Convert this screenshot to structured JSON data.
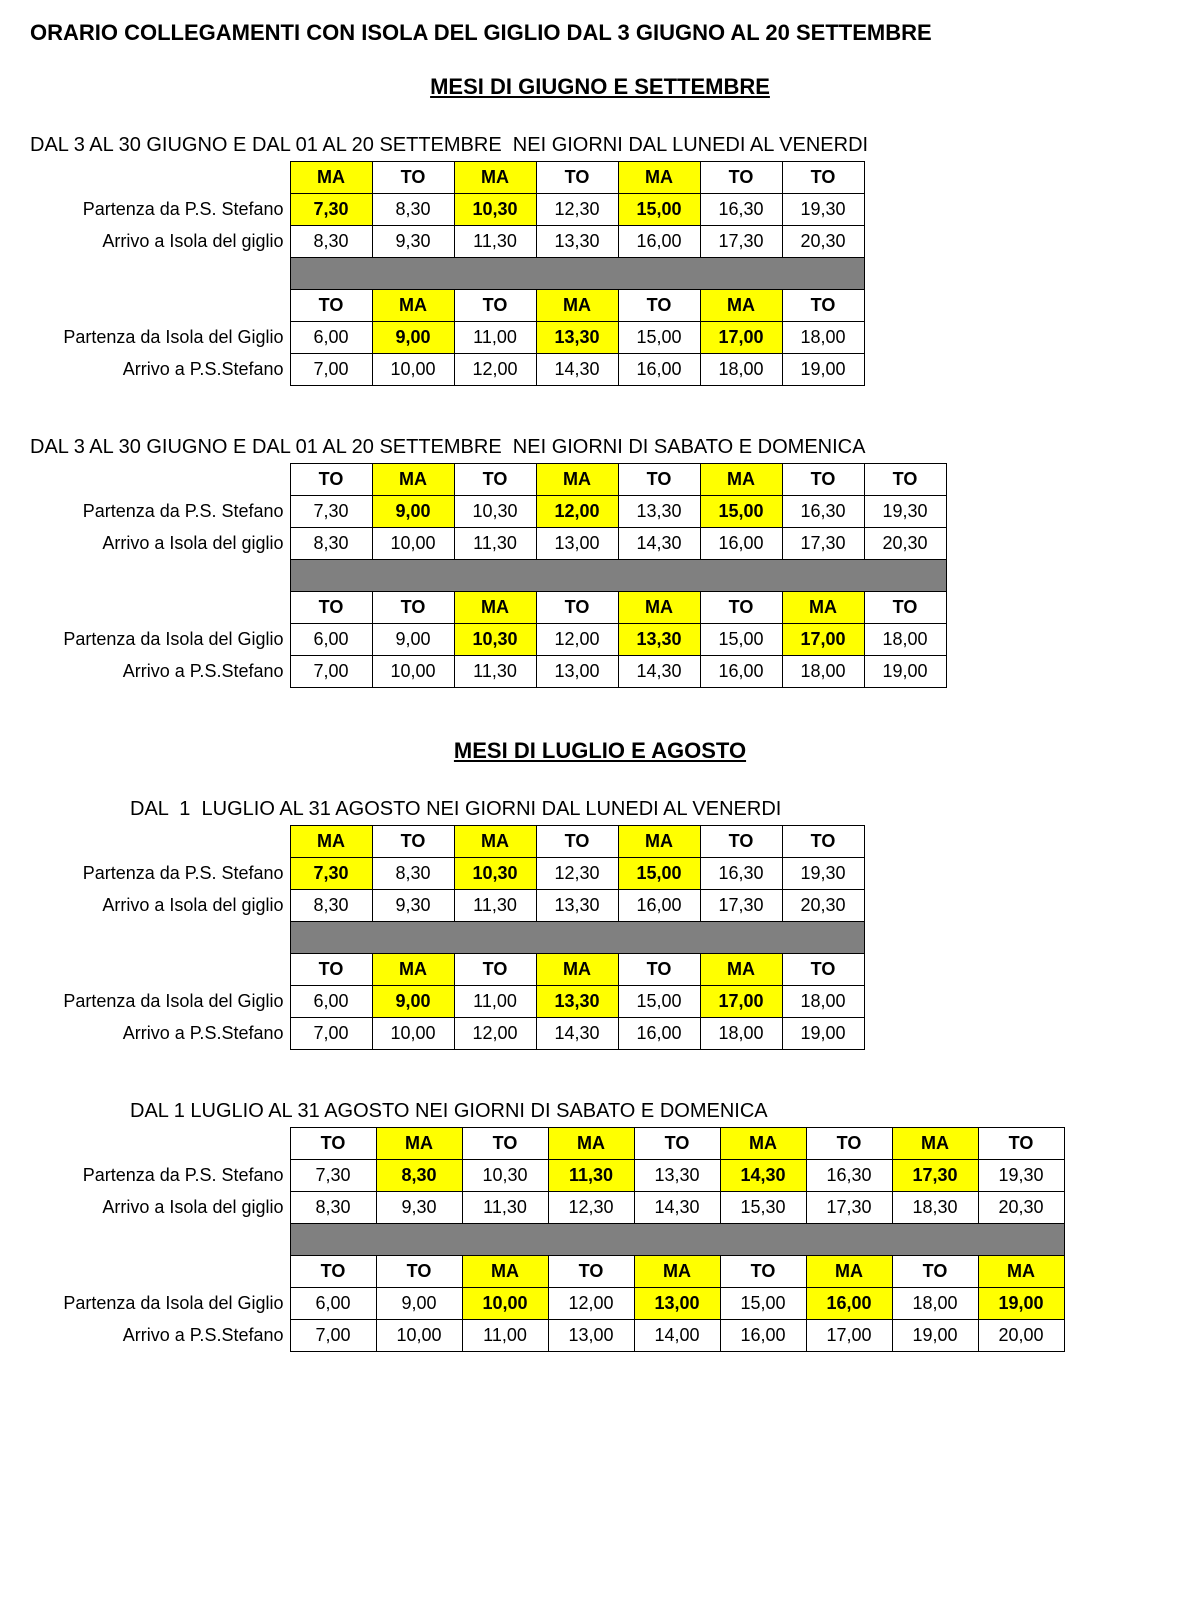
{
  "colors": {
    "highlight": "#ffff00",
    "spacer": "#808080",
    "border": "#000000",
    "background": "#ffffff"
  },
  "main_title": "ORARIO COLLEGAMENTI CON ISOLA DEL GIGLIO DAL 3 GIUGNO AL 20 SETTEMBRE",
  "section1_heading": "MESI DI GIUGNO E SETTEMBRE",
  "section2_heading": "MESI DI LUGLIO E AGOSTO",
  "row_labels": {
    "dep_ps": "Partenza da P.S. Stefano",
    "arr_isola": "Arrivo a Isola del giglio",
    "dep_isola": "Partenza da Isola del Giglio",
    "arr_ps": "Arrivo a P.S.Stefano"
  },
  "blocks": [
    {
      "title": "DAL 3 AL 30 GIUGNO E DAL 01 AL 20 SETTEMBRE  NEI GIORNI DAL LUNEDI AL VENERDI",
      "indent": false,
      "cols": 7,
      "out": {
        "hdr": [
          {
            "v": "MA",
            "h": 1
          },
          {
            "v": "TO",
            "h": 0
          },
          {
            "v": "MA",
            "h": 1
          },
          {
            "v": "TO",
            "h": 0
          },
          {
            "v": "MA",
            "h": 1
          },
          {
            "v": "TO",
            "h": 0
          },
          {
            "v": "TO",
            "h": 0
          }
        ],
        "dep": [
          {
            "v": "7,30",
            "h": 1
          },
          {
            "v": "8,30",
            "h": 0
          },
          {
            "v": "10,30",
            "h": 1
          },
          {
            "v": "12,30",
            "h": 0
          },
          {
            "v": "15,00",
            "h": 1
          },
          {
            "v": "16,30",
            "h": 0
          },
          {
            "v": "19,30",
            "h": 0
          }
        ],
        "arr": [
          {
            "v": "8,30",
            "h": 0
          },
          {
            "v": "9,30",
            "h": 0
          },
          {
            "v": "11,30",
            "h": 0
          },
          {
            "v": "13,30",
            "h": 0
          },
          {
            "v": "16,00",
            "h": 0
          },
          {
            "v": "17,30",
            "h": 0
          },
          {
            "v": "20,30",
            "h": 0
          }
        ]
      },
      "ret": {
        "hdr": [
          {
            "v": "TO",
            "h": 0
          },
          {
            "v": "MA",
            "h": 1
          },
          {
            "v": "TO",
            "h": 0
          },
          {
            "v": "MA",
            "h": 1
          },
          {
            "v": "TO",
            "h": 0
          },
          {
            "v": "MA",
            "h": 1
          },
          {
            "v": "TO",
            "h": 0
          }
        ],
        "dep": [
          {
            "v": "6,00",
            "h": 0
          },
          {
            "v": "9,00",
            "h": 1
          },
          {
            "v": "11,00",
            "h": 0
          },
          {
            "v": "13,30",
            "h": 1
          },
          {
            "v": "15,00",
            "h": 0
          },
          {
            "v": "17,00",
            "h": 1
          },
          {
            "v": "18,00",
            "h": 0
          }
        ],
        "arr": [
          {
            "v": "7,00",
            "h": 0
          },
          {
            "v": "10,00",
            "h": 0
          },
          {
            "v": "12,00",
            "h": 0
          },
          {
            "v": "14,30",
            "h": 0
          },
          {
            "v": "16,00",
            "h": 0
          },
          {
            "v": "18,00",
            "h": 0
          },
          {
            "v": "19,00",
            "h": 0
          }
        ]
      }
    },
    {
      "title": "DAL 3 AL 30 GIUGNO E DAL 01 AL 20 SETTEMBRE  NEI GIORNI DI SABATO E DOMENICA",
      "indent": false,
      "cols": 8,
      "out": {
        "hdr": [
          {
            "v": "TO",
            "h": 0
          },
          {
            "v": "MA",
            "h": 1
          },
          {
            "v": "TO",
            "h": 0
          },
          {
            "v": "MA",
            "h": 1
          },
          {
            "v": "TO",
            "h": 0
          },
          {
            "v": "MA",
            "h": 1
          },
          {
            "v": "TO",
            "h": 0
          },
          {
            "v": "TO",
            "h": 0
          }
        ],
        "dep": [
          {
            "v": "7,30",
            "h": 0
          },
          {
            "v": "9,00",
            "h": 1
          },
          {
            "v": "10,30",
            "h": 0
          },
          {
            "v": "12,00",
            "h": 1
          },
          {
            "v": "13,30",
            "h": 0
          },
          {
            "v": "15,00",
            "h": 1
          },
          {
            "v": "16,30",
            "h": 0
          },
          {
            "v": "19,30",
            "h": 0
          }
        ],
        "arr": [
          {
            "v": "8,30",
            "h": 0
          },
          {
            "v": "10,00",
            "h": 0
          },
          {
            "v": "11,30",
            "h": 0
          },
          {
            "v": "13,00",
            "h": 0
          },
          {
            "v": "14,30",
            "h": 0
          },
          {
            "v": "16,00",
            "h": 0
          },
          {
            "v": "17,30",
            "h": 0
          },
          {
            "v": "20,30",
            "h": 0
          }
        ]
      },
      "ret": {
        "hdr": [
          {
            "v": "TO",
            "h": 0
          },
          {
            "v": "TO",
            "h": 0
          },
          {
            "v": "MA",
            "h": 1
          },
          {
            "v": "TO",
            "h": 0
          },
          {
            "v": "MA",
            "h": 1
          },
          {
            "v": "TO",
            "h": 0
          },
          {
            "v": "MA",
            "h": 1
          },
          {
            "v": "TO",
            "h": 0
          }
        ],
        "dep": [
          {
            "v": "6,00",
            "h": 0
          },
          {
            "v": "9,00",
            "h": 0
          },
          {
            "v": "10,30",
            "h": 1
          },
          {
            "v": "12,00",
            "h": 0
          },
          {
            "v": "13,30",
            "h": 1
          },
          {
            "v": "15,00",
            "h": 0
          },
          {
            "v": "17,00",
            "h": 1
          },
          {
            "v": "18,00",
            "h": 0
          }
        ],
        "arr": [
          {
            "v": "7,00",
            "h": 0
          },
          {
            "v": "10,00",
            "h": 0
          },
          {
            "v": "11,30",
            "h": 0
          },
          {
            "v": "13,00",
            "h": 0
          },
          {
            "v": "14,30",
            "h": 0
          },
          {
            "v": "16,00",
            "h": 0
          },
          {
            "v": "18,00",
            "h": 0
          },
          {
            "v": "19,00",
            "h": 0
          }
        ]
      }
    },
    {
      "title": "DAL  1  LUGLIO AL 31 AGOSTO NEI GIORNI DAL LUNEDI AL VENERDI",
      "indent": true,
      "cols": 7,
      "out": {
        "hdr": [
          {
            "v": "MA",
            "h": 1
          },
          {
            "v": "TO",
            "h": 0
          },
          {
            "v": "MA",
            "h": 1
          },
          {
            "v": "TO",
            "h": 0
          },
          {
            "v": "MA",
            "h": 1
          },
          {
            "v": "TO",
            "h": 0
          },
          {
            "v": "TO",
            "h": 0
          }
        ],
        "dep": [
          {
            "v": "7,30",
            "h": 1
          },
          {
            "v": "8,30",
            "h": 0
          },
          {
            "v": "10,30",
            "h": 1
          },
          {
            "v": "12,30",
            "h": 0
          },
          {
            "v": "15,00",
            "h": 1
          },
          {
            "v": "16,30",
            "h": 0
          },
          {
            "v": "19,30",
            "h": 0
          }
        ],
        "arr": [
          {
            "v": "8,30",
            "h": 0
          },
          {
            "v": "9,30",
            "h": 0
          },
          {
            "v": "11,30",
            "h": 0
          },
          {
            "v": "13,30",
            "h": 0
          },
          {
            "v": "16,00",
            "h": 0
          },
          {
            "v": "17,30",
            "h": 0
          },
          {
            "v": "20,30",
            "h": 0
          }
        ]
      },
      "ret": {
        "hdr": [
          {
            "v": "TO",
            "h": 0
          },
          {
            "v": "MA",
            "h": 1
          },
          {
            "v": "TO",
            "h": 0
          },
          {
            "v": "MA",
            "h": 1
          },
          {
            "v": "TO",
            "h": 0
          },
          {
            "v": "MA",
            "h": 1
          },
          {
            "v": "TO",
            "h": 0
          }
        ],
        "dep": [
          {
            "v": "6,00",
            "h": 0
          },
          {
            "v": "9,00",
            "h": 1
          },
          {
            "v": "11,00",
            "h": 0
          },
          {
            "v": "13,30",
            "h": 1
          },
          {
            "v": "15,00",
            "h": 0
          },
          {
            "v": "17,00",
            "h": 1
          },
          {
            "v": "18,00",
            "h": 0
          }
        ],
        "arr": [
          {
            "v": "7,00",
            "h": 0
          },
          {
            "v": "10,00",
            "h": 0
          },
          {
            "v": "12,00",
            "h": 0
          },
          {
            "v": "14,30",
            "h": 0
          },
          {
            "v": "16,00",
            "h": 0
          },
          {
            "v": "18,00",
            "h": 0
          },
          {
            "v": "19,00",
            "h": 0
          }
        ]
      }
    },
    {
      "title": "DAL 1 LUGLIO AL 31 AGOSTO NEI GIORNI DI SABATO E DOMENICA",
      "indent": true,
      "cols": 9,
      "out": {
        "hdr": [
          {
            "v": "TO",
            "h": 0
          },
          {
            "v": "MA",
            "h": 1
          },
          {
            "v": "TO",
            "h": 0
          },
          {
            "v": "MA",
            "h": 1
          },
          {
            "v": "TO",
            "h": 0
          },
          {
            "v": "MA",
            "h": 1
          },
          {
            "v": "TO",
            "h": 0
          },
          {
            "v": "MA",
            "h": 1
          },
          {
            "v": "TO",
            "h": 0
          }
        ],
        "dep": [
          {
            "v": "7,30",
            "h": 0
          },
          {
            "v": "8,30",
            "h": 1
          },
          {
            "v": "10,30",
            "h": 0
          },
          {
            "v": "11,30",
            "h": 1
          },
          {
            "v": "13,30",
            "h": 0
          },
          {
            "v": "14,30",
            "h": 1
          },
          {
            "v": "16,30",
            "h": 0
          },
          {
            "v": "17,30",
            "h": 1
          },
          {
            "v": "19,30",
            "h": 0
          }
        ],
        "arr": [
          {
            "v": "8,30",
            "h": 0
          },
          {
            "v": "9,30",
            "h": 0
          },
          {
            "v": "11,30",
            "h": 0
          },
          {
            "v": "12,30",
            "h": 0
          },
          {
            "v": "14,30",
            "h": 0
          },
          {
            "v": "15,30",
            "h": 0
          },
          {
            "v": "17,30",
            "h": 0
          },
          {
            "v": "18,30",
            "h": 0
          },
          {
            "v": "20,30",
            "h": 0
          }
        ]
      },
      "ret": {
        "hdr": [
          {
            "v": "TO",
            "h": 0
          },
          {
            "v": "TO",
            "h": 0
          },
          {
            "v": "MA",
            "h": 1
          },
          {
            "v": "TO",
            "h": 0
          },
          {
            "v": "MA",
            "h": 1
          },
          {
            "v": "TO",
            "h": 0
          },
          {
            "v": "MA",
            "h": 1
          },
          {
            "v": "TO",
            "h": 0
          },
          {
            "v": "MA",
            "h": 1
          }
        ],
        "dep": [
          {
            "v": "6,00",
            "h": 0
          },
          {
            "v": "9,00",
            "h": 0
          },
          {
            "v": "10,00",
            "h": 1
          },
          {
            "v": "12,00",
            "h": 0
          },
          {
            "v": "13,00",
            "h": 1
          },
          {
            "v": "15,00",
            "h": 0
          },
          {
            "v": "16,00",
            "h": 1
          },
          {
            "v": "18,00",
            "h": 0
          },
          {
            "v": "19,00",
            "h": 1
          }
        ],
        "arr": [
          {
            "v": "7,00",
            "h": 0
          },
          {
            "v": "10,00",
            "h": 0
          },
          {
            "v": "11,00",
            "h": 0
          },
          {
            "v": "13,00",
            "h": 0
          },
          {
            "v": "14,00",
            "h": 0
          },
          {
            "v": "16,00",
            "h": 0
          },
          {
            "v": "17,00",
            "h": 0
          },
          {
            "v": "19,00",
            "h": 0
          },
          {
            "v": "20,00",
            "h": 0
          }
        ]
      }
    }
  ]
}
